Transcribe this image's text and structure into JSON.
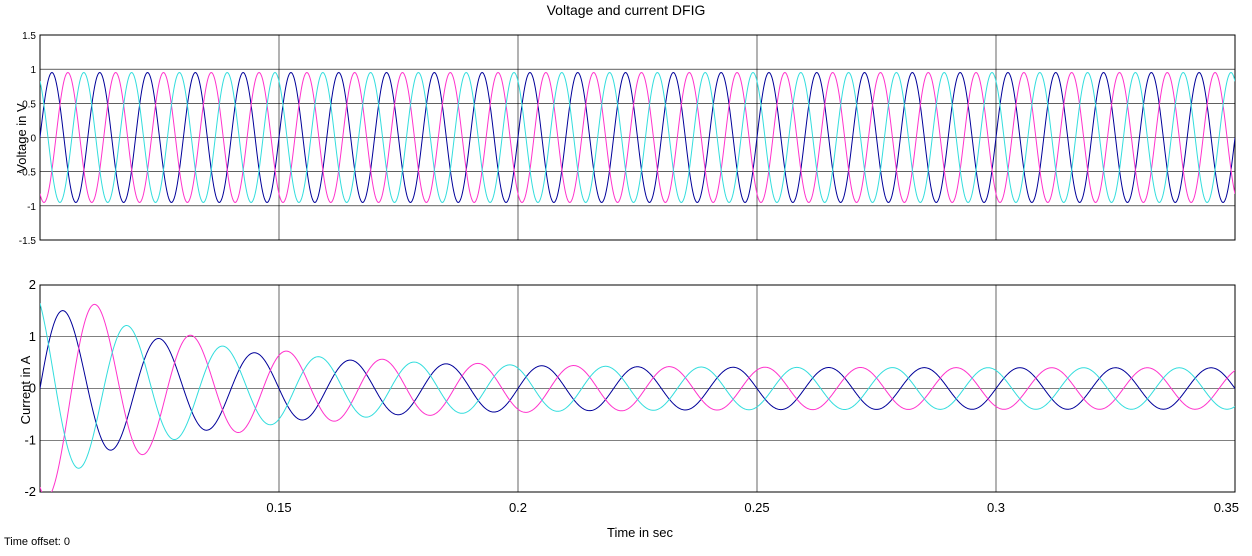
{
  "window": {
    "title": "Voltage and current DFIG",
    "time_offset_label": "Time offset:",
    "time_offset_value": "0"
  },
  "colors": {
    "phase_a": "#000099",
    "phase_b": "#ff33cc",
    "phase_c": "#33dddd",
    "grid": "#000000",
    "background": "#ffffff"
  },
  "chart_data": [
    {
      "type": "line",
      "title": "Voltage and current DFIG",
      "ylabel": "Voltage in V",
      "xlabel": "",
      "xlim": [
        0.1,
        0.35
      ],
      "ylim": [
        -1.5,
        1.5
      ],
      "x_ticks": [
        0.15,
        0.2,
        0.25,
        0.3
      ],
      "y_ticks": [
        -1.5,
        -1,
        -0.5,
        0,
        0.5,
        1,
        1.5
      ],
      "y_tick_labels": [
        "-1.5",
        "-1",
        "-0.5",
        "0",
        "0.5",
        "1",
        "1.5"
      ],
      "grid": true,
      "series": [
        {
          "color": "#000099",
          "frequency_hz": 100,
          "amplitude": 0.95,
          "phase_deg": 0
        },
        {
          "color": "#ff33cc",
          "frequency_hz": 100,
          "amplitude": 0.95,
          "phase_deg": 120
        },
        {
          "color": "#33dddd",
          "frequency_hz": 100,
          "amplitude": 0.95,
          "phase_deg": 240
        }
      ]
    },
    {
      "type": "line",
      "title": "",
      "ylabel": "Current in A",
      "xlabel": "Time in sec",
      "xlim": [
        0.1,
        0.35
      ],
      "ylim": [
        -2,
        2
      ],
      "x_ticks": [
        0.15,
        0.2,
        0.25,
        0.3,
        0.35
      ],
      "x_tick_labels": [
        "0.15",
        "0.2",
        "0.25",
        "0.3",
        "0.35"
      ],
      "y_ticks": [
        -2,
        -1,
        0,
        1,
        2
      ],
      "y_tick_labels": [
        "-2",
        "-1",
        "0",
        "1",
        "2"
      ],
      "grid": true,
      "series": [
        {
          "color": "#000099",
          "frequency_hz": 50,
          "steady_amplitude": 0.4,
          "transient_amplitude": 1.7,
          "decay_tau_s": 0.03,
          "phase_deg": 0
        },
        {
          "color": "#ff33cc",
          "frequency_hz": 50,
          "steady_amplitude": 0.4,
          "transient_amplitude": 2.2,
          "decay_tau_s": 0.03,
          "phase_deg": 120
        },
        {
          "color": "#33dddd",
          "frequency_hz": 50,
          "steady_amplitude": 0.4,
          "transient_amplitude": 1.9,
          "decay_tau_s": 0.03,
          "phase_deg": 240
        }
      ]
    }
  ]
}
